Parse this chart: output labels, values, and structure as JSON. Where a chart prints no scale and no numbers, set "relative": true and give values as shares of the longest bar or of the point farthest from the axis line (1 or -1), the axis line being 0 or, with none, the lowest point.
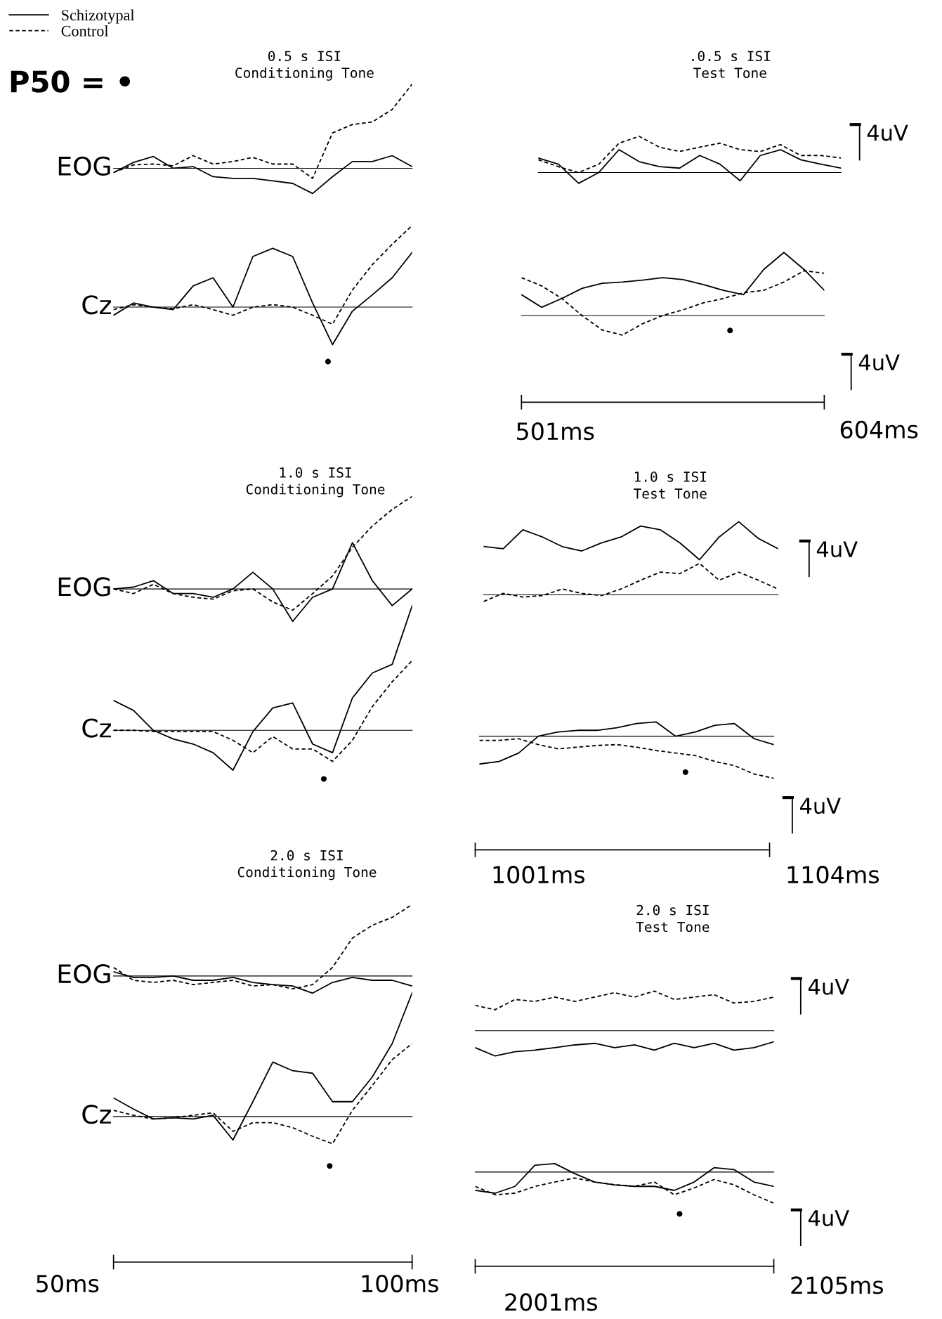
{
  "chart_data": [
    {
      "type": "line",
      "relative": true,
      "title": "0.5 s ISI",
      "subtitle": "Conditioning Tone",
      "ylabel": "EOG",
      "legend": "top left",
      "annotations": [
        "P50 = •"
      ],
      "categories": [
        null,
        null,
        null,
        null,
        null,
        null,
        null,
        null,
        null,
        null,
        null,
        null,
        null,
        null,
        null,
        null
      ],
      "series": [
        {
          "name": "Schizotypal",
          "color": "#000000",
          "line_style": "solid",
          "values": [
            -0.05,
            0.07,
            0.14,
            0,
            0.02,
            -0.1,
            -0.12,
            -0.12,
            -0.15,
            -0.18,
            -0.3,
            -0.1,
            0.08,
            0.08,
            0.15,
            0.02
          ]
        },
        {
          "name": "Control",
          "color": "#000000",
          "line_style": "dashed",
          "values": [
            -0.05,
            0.04,
            0.05,
            0.03,
            0.15,
            0.05,
            0.08,
            0.13,
            0.05,
            0.05,
            -0.12,
            0.42,
            0.52,
            0.55,
            0.7,
            1
          ]
        }
      ]
    },
    {
      "type": "line",
      "relative": true,
      "ylabel": "Cz",
      "annotations": [
        "•"
      ],
      "categories": [
        null,
        null,
        null,
        null,
        null,
        null,
        null,
        null,
        null,
        null,
        null,
        null,
        null,
        null,
        null,
        null
      ],
      "series": [
        {
          "color": "#000000",
          "line_style": "solid",
          "values": [
            -0.1,
            0.05,
            0,
            -0.03,
            0.26,
            0.36,
            0,
            0.62,
            0.72,
            0.62,
            0.05,
            -0.46,
            -0.05,
            0.15,
            0.36,
            0.67
          ]
        },
        {
          "color": "#000000",
          "line_style": "dashed",
          "values": [
            -0.03,
            0.03,
            0,
            -0.02,
            0.03,
            -0.03,
            -0.1,
            0,
            0.03,
            0,
            -0.1,
            -0.21,
            0.21,
            0.52,
            0.77,
            1
          ]
        }
      ]
    },
    {
      "type": "line",
      "relative": true,
      "title": ".0.5 s ISI",
      "subtitle": "Test Tone",
      "annotations": [
        "4uV"
      ],
      "categories": [
        null,
        null,
        null,
        null,
        null,
        null,
        null,
        null,
        null,
        null,
        null,
        null,
        null,
        null,
        null,
        null
      ],
      "series": [
        {
          "color": "#000000",
          "line_style": "solid",
          "values": [
            0.4,
            0.23,
            -0.3,
            0,
            0.63,
            0.3,
            0.16,
            0.12,
            0.47,
            0.23,
            -0.23,
            0.47,
            0.63,
            0.35,
            0.23,
            0.12
          ]
        },
        {
          "color": "#000000",
          "line_style": "dashed",
          "values": [
            0.35,
            0.16,
            0,
            0.23,
            0.81,
            1,
            0.7,
            0.58,
            0.7,
            0.81,
            0.63,
            0.58,
            0.77,
            0.47,
            0.47,
            0.4
          ]
        }
      ]
    },
    {
      "type": "line",
      "relative": true,
      "annotations": [
        "•",
        "4uV",
        "501ms",
        "604ms"
      ],
      "categories": [
        null,
        null,
        null,
        null,
        null,
        null,
        null,
        null,
        null,
        null,
        null,
        null,
        null,
        null,
        null,
        null
      ],
      "series": [
        {
          "color": "#000000",
          "line_style": "solid",
          "values": [
            0.33,
            0.13,
            0.27,
            0.43,
            0.51,
            0.53,
            0.56,
            0.6,
            0.57,
            0.49,
            0.4,
            0.33,
            0.73,
            1,
            0.73,
            0.4
          ]
        },
        {
          "color": "#000000",
          "line_style": "dashed",
          "values": [
            0.6,
            0.47,
            0.27,
            0,
            -0.23,
            -0.31,
            -0.13,
            0,
            0.09,
            0.2,
            0.27,
            0.36,
            0.4,
            0.53,
            0.71,
            0.67
          ]
        }
      ]
    },
    {
      "type": "line",
      "relative": true,
      "title": "1.0 s ISI",
      "subtitle": "Conditioning Tone",
      "ylabel": "EOG",
      "categories": [
        null,
        null,
        null,
        null,
        null,
        null,
        null,
        null,
        null,
        null,
        null,
        null,
        null,
        null,
        null,
        null
      ],
      "series": [
        {
          "color": "#000000",
          "line_style": "solid",
          "values": [
            0,
            0.02,
            0.09,
            -0.05,
            -0.05,
            -0.09,
            0,
            0.18,
            0,
            -0.35,
            -0.09,
            0,
            0.5,
            0.09,
            -0.18,
            0
          ]
        },
        {
          "color": "#000000",
          "line_style": "dashed",
          "values": [
            0,
            -0.05,
            0.05,
            -0.05,
            -0.09,
            -0.11,
            -0.02,
            0,
            -0.14,
            -0.23,
            -0.05,
            0.14,
            0.45,
            0.68,
            0.86,
            1
          ]
        }
      ]
    },
    {
      "type": "line",
      "relative": true,
      "ylabel": "Cz",
      "annotations": [
        "•"
      ],
      "categories": [
        null,
        null,
        null,
        null,
        null,
        null,
        null,
        null,
        null,
        null,
        null,
        null,
        null,
        null,
        null,
        null
      ],
      "series": [
        {
          "color": "#000000",
          "line_style": "solid",
          "values": [
            0.24,
            0.16,
            0,
            -0.07,
            -0.11,
            -0.18,
            -0.32,
            -0.01,
            0.18,
            0.22,
            -0.11,
            -0.18,
            0.26,
            0.46,
            0.53,
            1
          ]
        },
        {
          "color": "#000000",
          "line_style": "dashed",
          "values": [
            0,
            0,
            -0.01,
            -0.01,
            -0.01,
            -0.01,
            -0.08,
            -0.18,
            -0.05,
            -0.15,
            -0.15,
            -0.25,
            -0.08,
            0.19,
            0.39,
            0.56
          ]
        }
      ]
    },
    {
      "type": "line",
      "relative": true,
      "title": "1.0 s ISI",
      "subtitle": "Test Tone",
      "annotations": [
        "4uV"
      ],
      "categories": [
        null,
        null,
        null,
        null,
        null,
        null,
        null,
        null,
        null,
        null,
        null,
        null,
        null,
        null,
        null,
        null
      ],
      "series": [
        {
          "color": "#000000",
          "line_style": "solid",
          "values": [
            0.66,
            0.63,
            0.89,
            0.79,
            0.66,
            0.6,
            0.71,
            0.79,
            0.94,
            0.89,
            0.71,
            0.48,
            0.79,
            1,
            0.77,
            0.63
          ]
        },
        {
          "color": "#000000",
          "line_style": "dashed",
          "values": [
            -0.09,
            0.02,
            -0.03,
            -0.01,
            0.08,
            0.02,
            -0.01,
            0.08,
            0.2,
            0.31,
            0.29,
            0.43,
            0.2,
            0.31,
            0.2,
            0.08
          ]
        }
      ]
    },
    {
      "type": "line",
      "relative": true,
      "annotations": [
        "•",
        "4uV",
        "1001ms",
        "1104ms"
      ],
      "categories": [
        null,
        null,
        null,
        null,
        null,
        null,
        null,
        null,
        null,
        null,
        null,
        null,
        null,
        null,
        null,
        null
      ],
      "series": [
        {
          "color": "#000000",
          "line_style": "solid",
          "values": [
            -0.66,
            -0.6,
            -0.4,
            0,
            0.1,
            0.14,
            0.14,
            0.2,
            0.3,
            0.34,
            0,
            0.1,
            0.26,
            0.3,
            -0.06,
            -0.2
          ]
        },
        {
          "color": "#000000",
          "line_style": "dashed",
          "values": [
            -0.1,
            -0.1,
            -0.06,
            -0.2,
            -0.3,
            -0.26,
            -0.22,
            -0.2,
            -0.26,
            -0.34,
            -0.4,
            -0.46,
            -0.6,
            -0.7,
            -0.9,
            -1
          ]
        }
      ]
    },
    {
      "type": "line",
      "relative": true,
      "title": "2.0 s ISI",
      "subtitle": "Conditioning Tone",
      "ylabel": "EOG",
      "categories": [
        null,
        null,
        null,
        null,
        null,
        null,
        null,
        null,
        null,
        null,
        null,
        null,
        null,
        null,
        null,
        null
      ],
      "series": [
        {
          "color": "#000000",
          "line_style": "solid",
          "values": [
            0.06,
            -0.02,
            -0.02,
            0,
            -0.06,
            -0.06,
            -0.02,
            -0.09,
            -0.12,
            -0.14,
            -0.24,
            -0.09,
            -0.02,
            -0.06,
            -0.06,
            -0.14
          ]
        },
        {
          "color": "#000000",
          "line_style": "dashed",
          "values": [
            0.12,
            -0.06,
            -0.09,
            -0.06,
            -0.12,
            -0.09,
            -0.06,
            -0.14,
            -0.12,
            -0.18,
            -0.12,
            0.12,
            0.53,
            0.71,
            0.82,
            1
          ]
        }
      ]
    },
    {
      "type": "line",
      "relative": true,
      "ylabel": "Cz",
      "annotations": [
        "•",
        "50ms",
        "100ms"
      ],
      "categories": [
        null,
        null,
        null,
        null,
        null,
        null,
        null,
        null,
        null,
        null,
        null,
        null,
        null,
        null,
        null,
        null
      ],
      "series": [
        {
          "color": "#000000",
          "line_style": "solid",
          "values": [
            0.15,
            0.06,
            -0.02,
            -0.01,
            -0.02,
            0.01,
            -0.19,
            0.12,
            0.44,
            0.37,
            0.35,
            0.12,
            0.12,
            0.32,
            0.59,
            1
          ]
        },
        {
          "color": "#000000",
          "line_style": "dashed",
          "values": [
            0.05,
            0.01,
            -0.02,
            -0.01,
            0.01,
            0.03,
            -0.12,
            -0.05,
            -0.05,
            -0.09,
            -0.16,
            -0.22,
            0.05,
            0.25,
            0.46,
            0.59
          ]
        }
      ]
    },
    {
      "type": "line",
      "relative": true,
      "title": "2.0 s ISI",
      "subtitle": "Test Tone",
      "annotations": [
        "4uV"
      ],
      "categories": [
        null,
        null,
        null,
        null,
        null,
        null,
        null,
        null,
        null,
        null,
        null,
        null,
        null,
        null,
        null,
        null
      ],
      "series": [
        {
          "color": "#000000",
          "line_style": "solid",
          "values": [
            -0.43,
            -0.64,
            -0.53,
            -0.49,
            -0.43,
            -0.36,
            -0.32,
            -0.43,
            -0.36,
            -0.49,
            -0.32,
            -0.43,
            -0.32,
            -0.49,
            -0.43,
            -0.28
          ]
        },
        {
          "color": "#000000",
          "line_style": "dashed",
          "values": [
            0.64,
            0.53,
            0.79,
            0.74,
            0.85,
            0.74,
            0.85,
            0.96,
            0.85,
            1,
            0.79,
            0.85,
            0.91,
            0.7,
            0.74,
            0.85
          ]
        }
      ]
    },
    {
      "type": "line",
      "relative": true,
      "annotations": [
        "•",
        "4uV",
        "2001ms",
        "2105ms"
      ],
      "categories": [
        null,
        null,
        null,
        null,
        null,
        null,
        null,
        null,
        null,
        null,
        null,
        null,
        null,
        null,
        null,
        null
      ],
      "series": [
        {
          "color": "#000000",
          "line_style": "solid",
          "values": [
            -0.59,
            -0.68,
            -0.46,
            0.22,
            0.27,
            -0.05,
            -0.32,
            -0.41,
            -0.46,
            -0.46,
            -0.59,
            -0.32,
            0.14,
            0.08,
            -0.32,
            -0.46
          ]
        },
        {
          "color": "#000000",
          "line_style": "dashed",
          "values": [
            -0.46,
            -0.73,
            -0.68,
            -0.46,
            -0.32,
            -0.19,
            -0.32,
            -0.41,
            -0.46,
            -0.32,
            -0.73,
            -0.51,
            -0.24,
            -0.41,
            -0.73,
            -1
          ]
        }
      ]
    }
  ]
}
